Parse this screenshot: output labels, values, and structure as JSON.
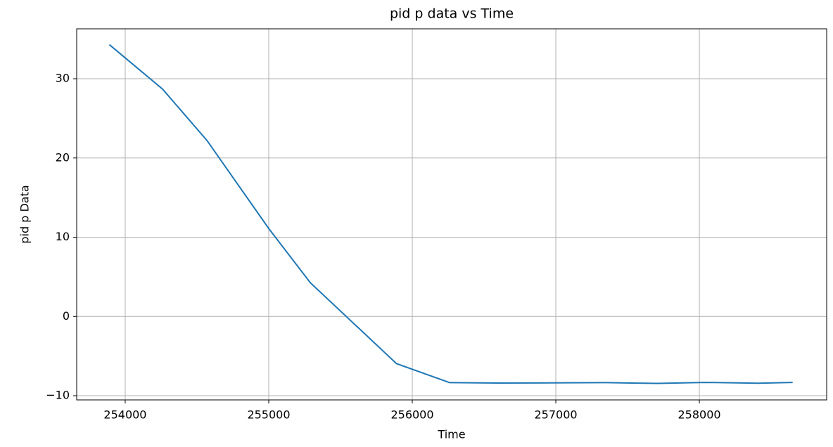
{
  "chart_data": {
    "type": "line",
    "title": "pid p data vs Time",
    "x_label": "Time",
    "y_label": "pid p Data",
    "x": [
      253890,
      254260,
      254570,
      255000,
      255290,
      255890,
      256260,
      256600,
      256970,
      257350,
      257710,
      258040,
      258410,
      258650
    ],
    "series": [
      {
        "name": "pid p data",
        "color": "#1f77b4",
        "values": [
          34.3,
          28.7,
          22.2,
          11.1,
          4.25,
          -5.95,
          -8.35,
          -8.4,
          -8.38,
          -8.35,
          -8.45,
          -8.32,
          -8.42,
          -8.32
        ]
      }
    ],
    "xlim": [
      253662,
      258887
    ],
    "xticks": [
      254000,
      255000,
      256000,
      257000,
      258000
    ],
    "ylim": [
      -10.53,
      36.3
    ],
    "yticks": [
      {
        "value": -10,
        "label": "−10"
      },
      0,
      10,
      20,
      30
    ],
    "grid": true
  }
}
